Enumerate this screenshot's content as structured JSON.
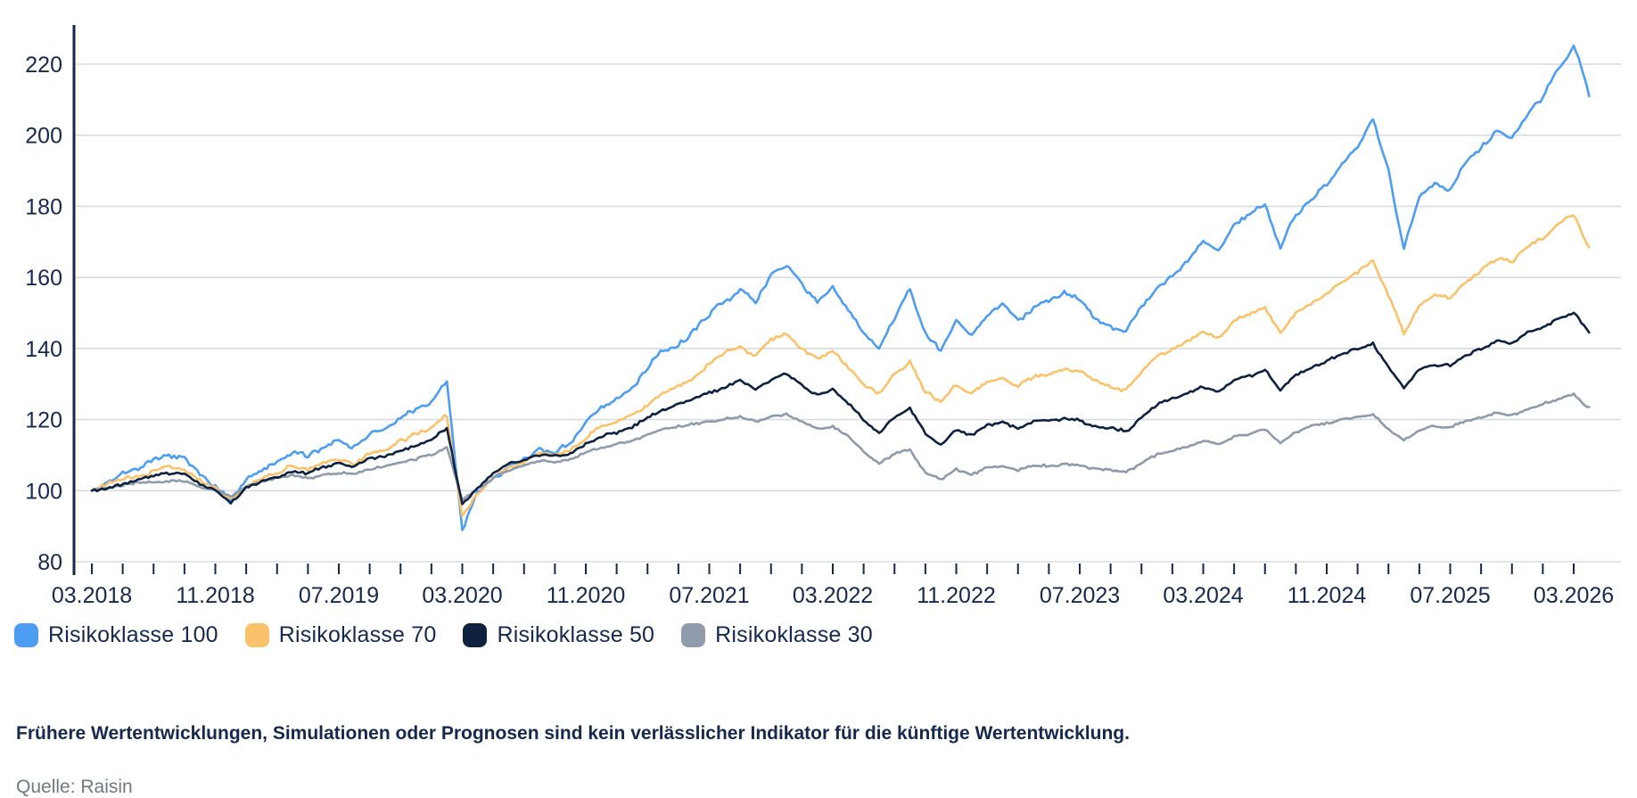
{
  "chart_data": {
    "type": "line",
    "title": "",
    "xlabel": "",
    "ylabel": "",
    "grid": true,
    "legend_position": "bottom-left",
    "y_axis": {
      "ticks": [
        80,
        100,
        120,
        140,
        160,
        180,
        200,
        220
      ],
      "min": 80,
      "max": 228
    },
    "x_axis": {
      "tick_labels": [
        "03.2018",
        "11.2018",
        "07.2019",
        "03.2020",
        "11.2020",
        "07.2021",
        "03.2022",
        "11.2022",
        "07.2023",
        "03.2024",
        "11.2024",
        "07.2025",
        "03.2026"
      ],
      "tick_label_months": [
        0,
        8,
        16,
        24,
        32,
        40,
        48,
        56,
        64,
        72,
        80,
        88,
        96
      ],
      "minor_tick_every_months": 2,
      "months_total": 97
    },
    "series": [
      {
        "name": "Risikoklasse 100",
        "color": "#4D9DF3",
        "jitter": 0.9,
        "values": [
          100,
          102.5,
          104.5,
          106,
          107.5,
          109,
          108.5,
          104,
          101,
          96.5,
          102,
          105,
          107,
          110,
          109,
          112,
          113.5,
          111.5,
          115,
          116.5,
          120,
          122.5,
          125,
          130.5,
          89,
          100,
          104,
          107,
          109,
          112,
          111,
          113.5,
          119,
          123,
          125,
          128,
          134,
          139,
          141,
          145,
          149.5,
          153,
          156,
          152,
          160,
          163.5,
          158,
          153,
          157,
          150,
          144,
          139,
          148,
          156,
          144,
          138.5,
          147,
          143,
          149,
          152,
          147,
          151,
          153,
          156,
          153.5,
          149,
          146.5,
          144.5,
          152,
          158,
          161,
          165,
          170,
          167,
          174,
          177,
          180,
          168,
          177,
          181,
          186,
          191,
          196,
          204,
          190,
          168,
          182,
          187,
          184,
          192,
          196,
          201,
          199,
          206,
          210,
          218,
          225,
          211
        ]
      },
      {
        "name": "Risikoklasse 70",
        "color": "#FAC36B",
        "jitter": 0.7,
        "values": [
          100,
          101.8,
          103,
          104,
          105,
          106.3,
          106,
          102.5,
          100,
          96.8,
          101,
          103.5,
          105,
          107,
          106.5,
          108.5,
          109.5,
          108,
          111,
          112,
          114.5,
          116.5,
          118.5,
          121.5,
          93.5,
          100,
          104,
          106.5,
          108,
          110,
          109.5,
          111,
          114.5,
          117.5,
          119,
          121,
          124.5,
          128,
          130,
          132.5,
          136,
          139,
          141,
          138,
          142.5,
          144.5,
          140,
          136.5,
          139,
          134,
          130,
          127,
          132,
          136.5,
          128,
          125,
          130,
          128,
          131,
          132.5,
          129.5,
          132,
          133,
          134.5,
          133,
          130.5,
          129,
          128,
          133.5,
          138,
          140,
          142.5,
          145.5,
          143.5,
          148,
          150,
          152,
          145,
          150.5,
          153,
          156,
          159,
          161.5,
          164,
          155,
          144.5,
          152,
          155.5,
          154,
          159,
          162,
          165,
          164,
          168,
          170.5,
          174.5,
          177.5,
          168.5
        ]
      },
      {
        "name": "Risikoklasse 50",
        "color": "#0E2240",
        "jitter": 0.55,
        "values": [
          100,
          101.3,
          102.2,
          103,
          103.8,
          104.5,
          104.3,
          101.5,
          99.5,
          96.3,
          100.5,
          102.5,
          104,
          105.5,
          105,
          106.5,
          107.3,
          106.2,
          108.5,
          109.3,
          111,
          112.5,
          114,
          117,
          95.5,
          100.5,
          104.5,
          107,
          108.5,
          110,
          110,
          111,
          113.5,
          115.5,
          116.5,
          118,
          120.5,
          123,
          124.5,
          126,
          127.5,
          129,
          130.5,
          128.5,
          131.5,
          133,
          130,
          127.5,
          129,
          124.5,
          120,
          116,
          120,
          123,
          115.5,
          112.5,
          117,
          115.5,
          118,
          119,
          117,
          119,
          119.5,
          120.5,
          120,
          118.5,
          117.5,
          116.5,
          120,
          124,
          125.5,
          127,
          129,
          128,
          131,
          132.5,
          134,
          128.5,
          133,
          135,
          137,
          139,
          140,
          141,
          135,
          129,
          134,
          136,
          135.5,
          138.5,
          140.5,
          142.5,
          142,
          145,
          146.5,
          148.5,
          150.5,
          144.5
        ]
      },
      {
        "name": "Risikoklasse 30",
        "color": "#8F9BAA",
        "jitter": 0.45,
        "values": [
          100,
          101,
          101.6,
          102,
          102.5,
          103,
          103,
          101.2,
          100,
          97.8,
          100.8,
          102,
          103.2,
          104,
          103.8,
          104.8,
          105.3,
          104.6,
          106,
          106.6,
          108,
          109,
          110.5,
          112.8,
          97.5,
          101,
          104,
          106,
          107.5,
          108.5,
          108.3,
          109,
          110.5,
          112,
          112.8,
          114,
          115.5,
          117,
          117.8,
          118.6,
          119.3,
          120,
          120.6,
          119.5,
          120.8,
          121.5,
          119.5,
          117.5,
          118.5,
          115.5,
          111.5,
          108,
          110.5,
          112,
          105.5,
          103,
          106,
          104.5,
          106.5,
          107,
          105.5,
          107,
          107.2,
          107.8,
          107.5,
          106.5,
          105.8,
          105,
          107.5,
          110,
          111,
          112,
          113.5,
          112.8,
          114.8,
          115.8,
          117,
          113.5,
          116.5,
          118,
          119.3,
          120.5,
          121,
          121.5,
          117.5,
          114.5,
          117.5,
          118.5,
          118.2,
          120,
          121,
          122,
          121.5,
          123,
          124,
          125.5,
          127,
          123.5
        ]
      }
    ]
  },
  "notes": {
    "disclaimer": "Frühere Wertentwicklungen, Simulationen oder Prognosen sind kein verlässlicher Indikator für die künftige Wertentwicklung.",
    "source": "Quelle: Raisin"
  },
  "colors": {
    "text": "#16294C",
    "grid": "#D7DBE0",
    "muted": "#6F7882",
    "background": "#FFFFFF"
  },
  "render": {
    "seed": 7,
    "subpoints_per_month": 6
  }
}
